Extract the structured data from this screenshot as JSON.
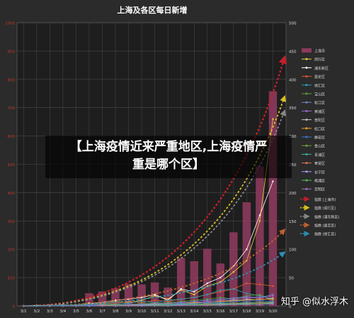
{
  "chart_data": {
    "type": "bar",
    "title": "上海及各区每日新增",
    "categories": [
      "3/1",
      "3/2",
      "3/3",
      "3/4",
      "3/5",
      "3/6",
      "3/7",
      "3/8",
      "3/9",
      "3/10",
      "3/11",
      "3/12",
      "3/13",
      "3/14",
      "3/15",
      "3/16",
      "3/17",
      "3/18",
      "3/19",
      "3/20"
    ],
    "left_axis": {
      "ticks": [
        "1000",
        "900",
        "800",
        "700",
        "600",
        "500",
        "400",
        "300",
        "200",
        "100",
        "0"
      ],
      "ylim": [
        0,
        1000
      ]
    },
    "right_axis": {
      "ticks": [
        "500",
        "450",
        "400",
        "350",
        "300",
        "250",
        "200",
        "150",
        "100",
        "50",
        "0"
      ],
      "ylim": [
        0,
        500
      ]
    },
    "grid": true,
    "legend_position": "right",
    "series": [
      {
        "name": "上海市",
        "kind": "bar",
        "axis": "left",
        "color": "#8b3a5c",
        "values": [
          2,
          3,
          5,
          5,
          3,
          45,
          51,
          62,
          78,
          76,
          83,
          65,
          169,
          158,
          202,
          150,
          260,
          366,
          493,
          758
        ]
      },
      {
        "name": "闵行区",
        "kind": "line",
        "color": "#e8d33a",
        "values": [
          0,
          0,
          1,
          0,
          1,
          5,
          3,
          8,
          6,
          10,
          18,
          12,
          28,
          20,
          35,
          42,
          60,
          80,
          150,
          330
        ]
      },
      {
        "name": "浦东新区",
        "kind": "line",
        "color": "#ffffff",
        "values": [
          0,
          1,
          0,
          2,
          0,
          4,
          6,
          10,
          12,
          15,
          20,
          10,
          30,
          25,
          40,
          50,
          70,
          100,
          160,
          220
        ]
      },
      {
        "name": "嘉定区",
        "kind": "line",
        "color": "#e05a2a",
        "values": [
          0,
          0,
          1,
          1,
          2,
          3,
          5,
          4,
          8,
          6,
          10,
          8,
          12,
          15,
          20,
          25,
          30,
          40,
          38,
          35
        ]
      },
      {
        "name": "徐汇区",
        "kind": "line",
        "color": "#2aa0b8",
        "values": [
          0,
          0,
          0,
          1,
          1,
          2,
          3,
          3,
          5,
          8,
          6,
          10,
          12,
          15,
          20,
          28,
          30,
          22,
          18,
          12
        ]
      },
      {
        "name": "宝山区",
        "kind": "line",
        "color": "#5aa03a",
        "values": [
          0,
          0,
          0,
          0,
          1,
          1,
          2,
          2,
          3,
          4,
          5,
          6,
          8,
          10,
          12,
          15,
          12,
          18,
          20,
          10
        ]
      },
      {
        "name": "松江区",
        "kind": "line",
        "color": "#6a8ad0",
        "values": [
          0,
          0,
          0,
          0,
          0,
          1,
          1,
          2,
          2,
          3,
          4,
          5,
          6,
          8,
          10,
          12,
          14,
          16,
          15,
          20
        ]
      },
      {
        "name": "黄浦区",
        "kind": "line",
        "color": "#9a6ad0",
        "values": [
          0,
          0,
          0,
          0,
          0,
          1,
          2,
          1,
          3,
          2,
          4,
          3,
          5,
          6,
          8,
          10,
          12,
          15,
          14,
          18
        ]
      },
      {
        "name": "普陀区",
        "kind": "line",
        "color": "#c0c0c0",
        "values": [
          0,
          0,
          0,
          0,
          0,
          0,
          1,
          1,
          2,
          2,
          3,
          3,
          4,
          5,
          6,
          8,
          10,
          12,
          11,
          14
        ]
      },
      {
        "name": "虹口区",
        "kind": "line",
        "color": "#e8a020",
        "values": [
          0,
          0,
          0,
          0,
          0,
          0,
          1,
          2,
          1,
          2,
          2,
          4,
          4,
          6,
          5,
          8,
          9,
          10,
          12,
          12
        ]
      },
      {
        "name": "静安区",
        "kind": "line",
        "color": "#3a7ad0",
        "values": [
          0,
          0,
          0,
          0,
          0,
          1,
          0,
          1,
          2,
          1,
          2,
          3,
          4,
          4,
          6,
          6,
          8,
          9,
          10,
          8
        ]
      },
      {
        "name": "金山区",
        "kind": "line",
        "color": "#7aa03a",
        "values": [
          0,
          0,
          0,
          0,
          0,
          0,
          0,
          1,
          1,
          1,
          1,
          2,
          2,
          3,
          3,
          4,
          4,
          5,
          5,
          6
        ]
      },
      {
        "name": "青浦区",
        "kind": "line",
        "color": "#3ab0a0",
        "values": [
          0,
          0,
          0,
          0,
          0,
          0,
          0,
          1,
          1,
          2,
          2,
          2,
          3,
          3,
          4,
          5,
          5,
          6,
          7,
          7
        ]
      },
      {
        "name": "奉贤区",
        "kind": "line",
        "color": "#e07050",
        "values": [
          0,
          0,
          0,
          0,
          0,
          0,
          0,
          0,
          1,
          1,
          1,
          1,
          2,
          2,
          3,
          3,
          4,
          4,
          5,
          5
        ]
      },
      {
        "name": "长宁区",
        "kind": "line",
        "color": "#a0a0ff",
        "values": [
          0,
          0,
          0,
          0,
          0,
          0,
          0,
          0,
          0,
          1,
          1,
          1,
          2,
          2,
          2,
          3,
          3,
          4,
          4,
          5
        ]
      },
      {
        "name": "杨浦区",
        "kind": "line",
        "color": "#50c050",
        "values": [
          0,
          0,
          0,
          0,
          0,
          0,
          0,
          0,
          0,
          0,
          1,
          1,
          1,
          2,
          2,
          2,
          3,
          3,
          4,
          4
        ]
      },
      {
        "name": "崇明区",
        "kind": "line",
        "color": "#a070c0",
        "values": [
          0,
          0,
          0,
          0,
          0,
          0,
          0,
          0,
          0,
          0,
          0,
          0,
          1,
          1,
          1,
          1,
          2,
          2,
          2,
          3
        ]
      }
    ],
    "trends": [
      {
        "name": "指数 (上海市)",
        "color": "#c0202a",
        "start": 0,
        "end_index": 20,
        "end_value": 880
      },
      {
        "name": "指数 (闵行区)",
        "color": "#d8c020",
        "start": 0,
        "end_index": 20,
        "end_value": 370
      },
      {
        "name": "指数 (浦东新区)",
        "color": "#888888",
        "start": 0,
        "end_index": 21,
        "end_value": 345
      },
      {
        "name": "指数 (嘉定区)",
        "color": "#c06030",
        "start": 0,
        "end_index": 21,
        "end_value": 135
      },
      {
        "name": "指数 (徐汇区)",
        "color": "#2a90b0",
        "start": 0,
        "end_index": 21,
        "end_value": 95
      }
    ],
    "legend_extra": [
      {
        "name": "指数 (上海市)",
        "color": "#c0202a",
        "shape": "dash-arrow"
      },
      {
        "name": "指数 (闵行区)",
        "color": "#d8c020",
        "shape": "dash-arrow"
      },
      {
        "name": "指数 (浦东新区)",
        "color": "#888888",
        "shape": "dash-arrow"
      },
      {
        "name": "指数 (嘉定区)",
        "color": "#c06030",
        "shape": "dash-arrow"
      },
      {
        "name": "指数 (徐汇区)",
        "color": "#2a90b0",
        "shape": "dash-arrow"
      }
    ]
  },
  "overlay": {
    "banner_line1": "【上海疫情近来严重地区,上海疫情严",
    "banner_line2": "重是哪个区】",
    "watermark": "知乎 @似水浮木"
  },
  "colors": {
    "background": "#2b2b2b",
    "plot_bg": "#1e1e1e",
    "grid": "#4a4a4a",
    "text": "#dddddd",
    "title": "#ffffff"
  }
}
